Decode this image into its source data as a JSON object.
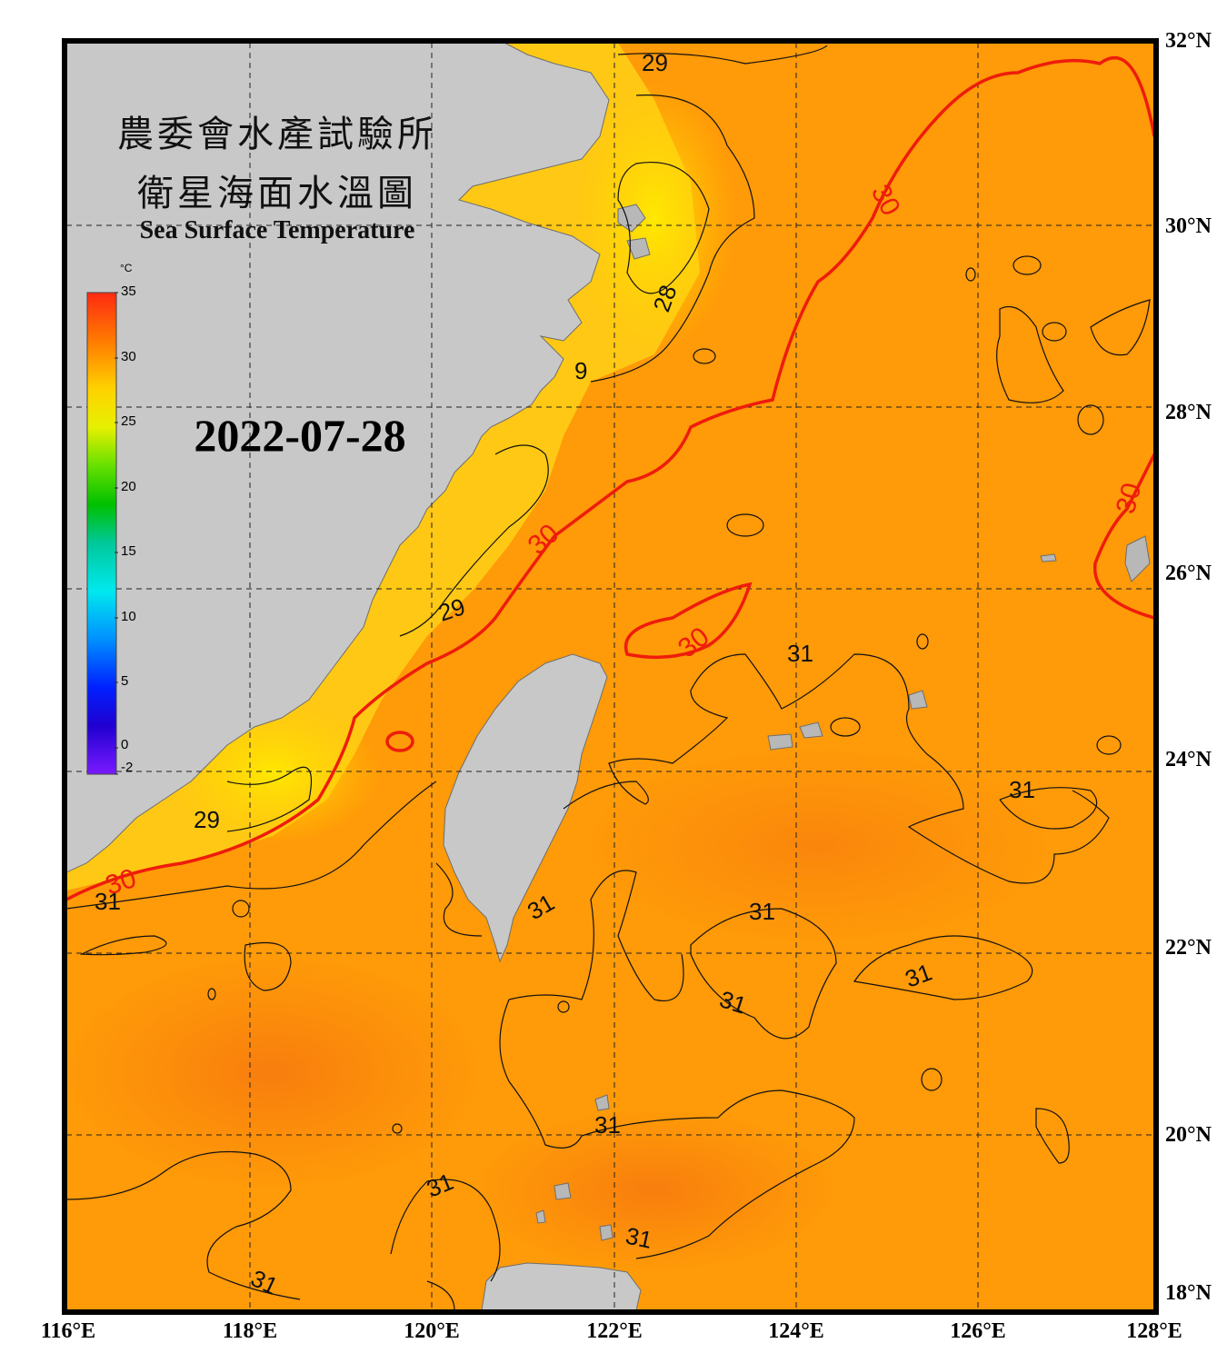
{
  "title": {
    "line1": "農委會水產試驗所",
    "line2": "衛星海面水溫圖",
    "english": "Sea Surface Temperature"
  },
  "date": "2022-07-28",
  "colorbar": {
    "unit": "°C",
    "min": -2,
    "max": 35,
    "ticks": [
      "35",
      "30",
      "25",
      "20",
      "15",
      "10",
      "5",
      "0",
      "-2"
    ]
  },
  "axes": {
    "longitude_labels": [
      "116°E",
      "118°E",
      "120°E",
      "122°E",
      "124°E",
      "126°E",
      "128°E"
    ],
    "latitude_labels": [
      "32°N",
      "30°N",
      "28°N",
      "26°N",
      "24°N",
      "22°N",
      "20°N",
      "18°N"
    ]
  },
  "isotherm_labels": {
    "c28": [
      "28"
    ],
    "c29": [
      "29",
      "9",
      "29",
      "29"
    ],
    "c30": [
      "30",
      "30",
      "30",
      "30",
      "30"
    ],
    "c31": [
      "31",
      "31",
      "31",
      "31",
      "31",
      "31",
      "31",
      "31",
      "31",
      "31",
      "31",
      "31"
    ]
  },
  "colors": {
    "land": "#c8c8c8",
    "sea_warm": "#ff9800",
    "sea_cool": "#ffd400",
    "isotherm_30": "#ee1c0c",
    "isotherm_other": "#000000",
    "frame": "#000000"
  }
}
